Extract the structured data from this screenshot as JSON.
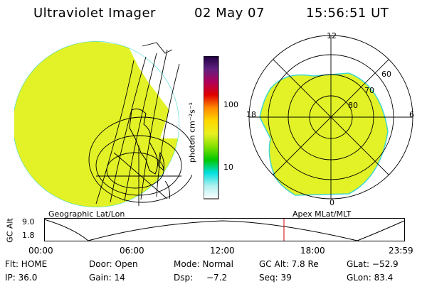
{
  "header": {
    "instrument": "Ultraviolet Imager",
    "date": "02 May 07",
    "time": "15:56:51 UT"
  },
  "colorbar": {
    "unit_label": "photon cm⁻²s⁻¹",
    "ticks": [
      {
        "label": "100",
        "value": 100
      },
      {
        "label": "10",
        "value": 10
      }
    ],
    "scale": "log",
    "colors": [
      "#ffffff",
      "#b0f0f0",
      "#00e0e0",
      "#00c800",
      "#80e000",
      "#e8f020",
      "#ffd800",
      "#ff8c00",
      "#e00000",
      "#b0005a",
      "#602080",
      "#200040"
    ]
  },
  "panels": {
    "left_label": "Geographic Lat/Lon",
    "right_label": "Apex MLat/MLT"
  },
  "polar": {
    "mlt_labels": {
      "top": "12",
      "left": "18",
      "right": "6",
      "bottom": "0"
    },
    "mlat_labels": [
      "60",
      "70",
      "80"
    ]
  },
  "altitude_plot": {
    "ylabel": "GC Alt",
    "y_ticks": [
      "9.0",
      "1.8"
    ],
    "x_ticks": [
      "00:00",
      "06:00",
      "12:00",
      "18:00",
      "23:59"
    ],
    "current_time_color": "#cc0000"
  },
  "status": {
    "row1": {
      "flt": "Flt: HOME",
      "door": "Door: Open",
      "mode": "Mode: Normal",
      "gc_alt": "GC Alt: 7.8 Re",
      "glat": "GLat: −52.9"
    },
    "row2": {
      "ip": "IP: 36.0",
      "gain": "Gain: 14",
      "dsp": "Dsp:",
      "dsp_value": "−7.2",
      "seq": "Seq: 39",
      "glon": "GLon:  83.4"
    }
  },
  "colors": {
    "aurora_fill": "#e2f227",
    "aurora_edge": "#3fd7cf",
    "grid": "#000000"
  }
}
